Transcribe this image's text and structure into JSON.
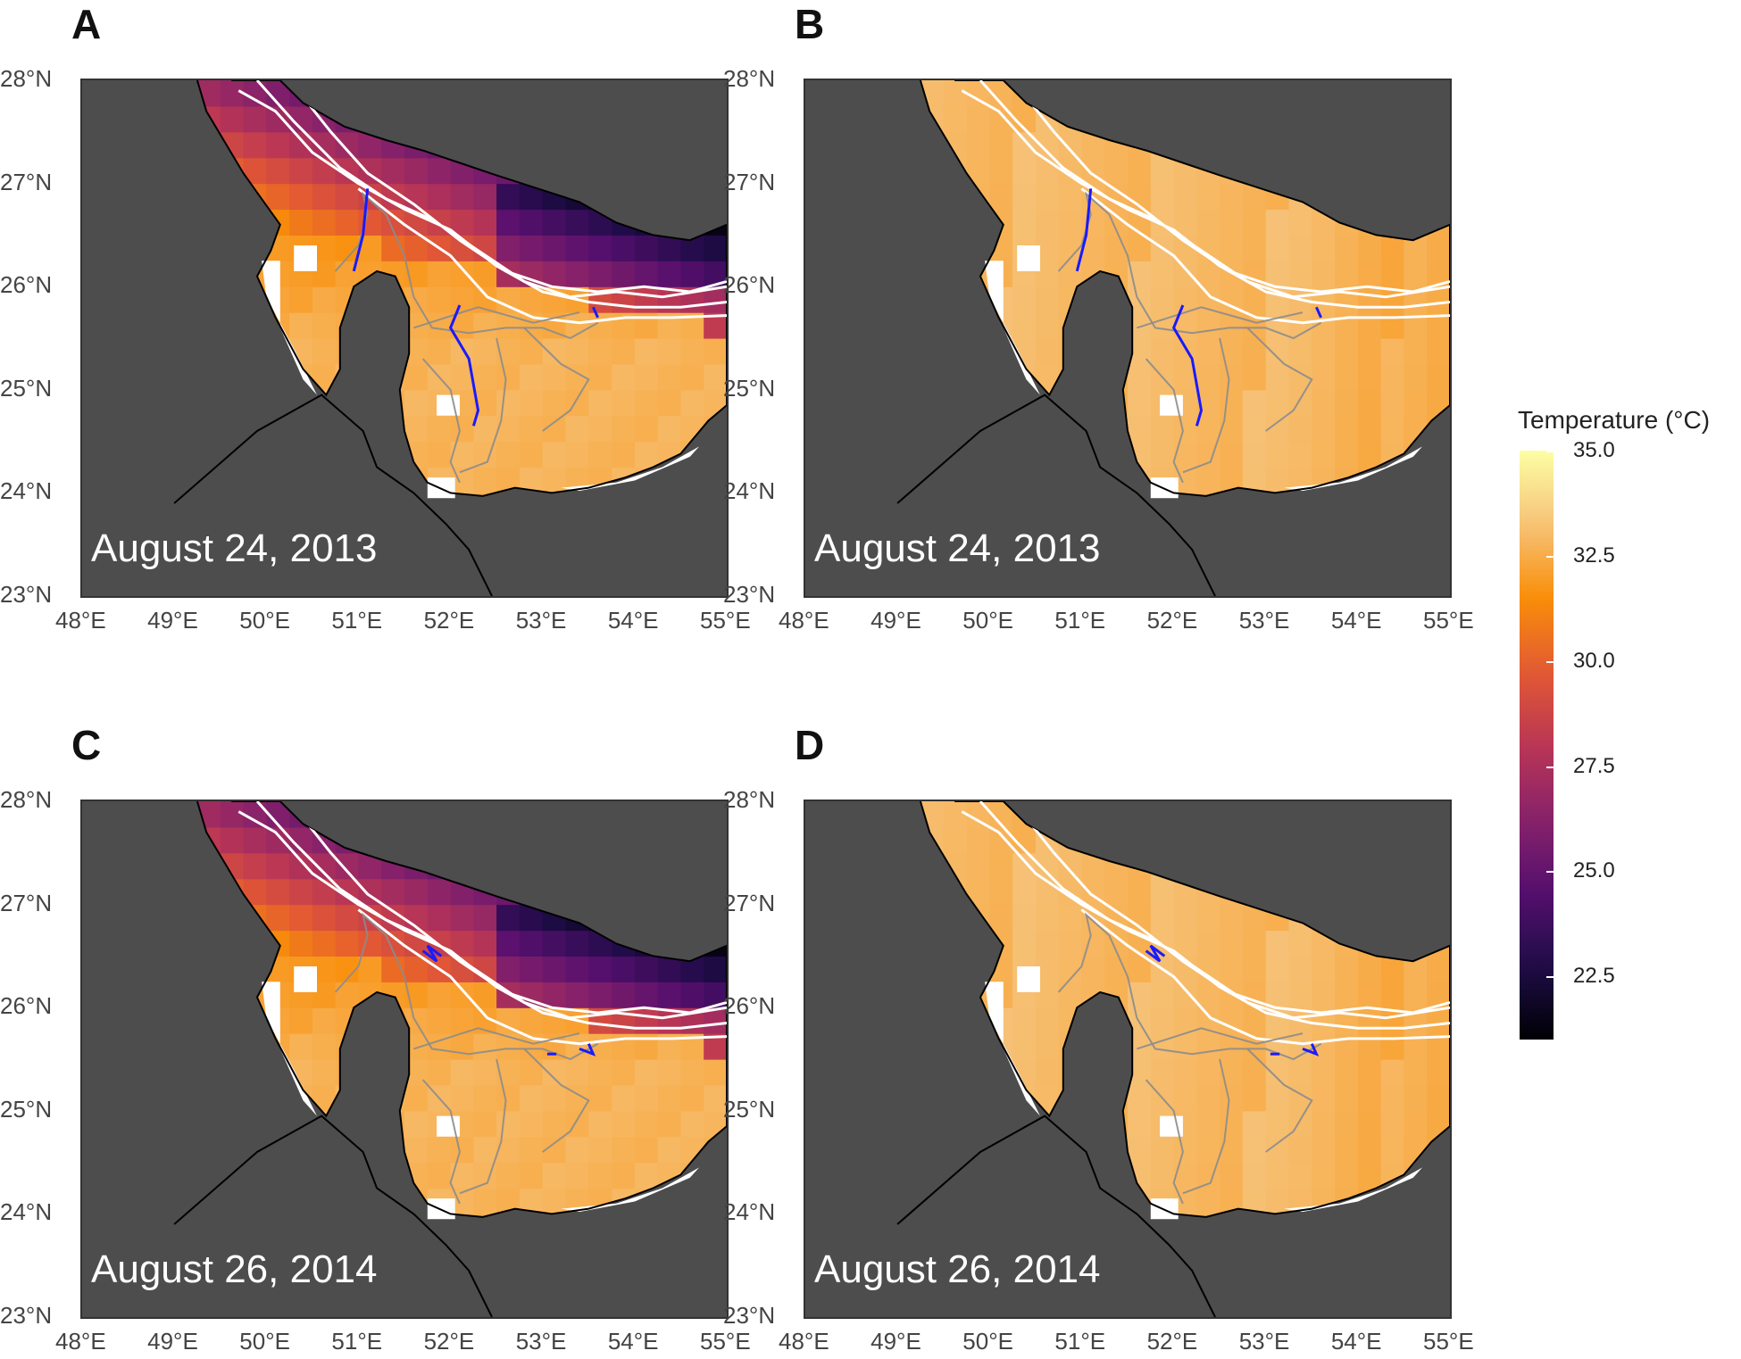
{
  "figure": {
    "legend": {
      "title": "Temperature (°C)",
      "ticks": [
        "35.0",
        "32.5",
        "30.0",
        "27.5",
        "25.0",
        "22.5"
      ],
      "colors": [
        "#000004",
        "#1f0c48",
        "#550f6d",
        "#88226a",
        "#ba3655",
        "#e35933",
        "#f98e09",
        "#f6c37a",
        "#fcffa4"
      ],
      "range": [
        21.0,
        35.0
      ]
    },
    "lat_labels": [
      "28°N",
      "27°N",
      "26°N",
      "25°N",
      "24°N",
      "23°N"
    ],
    "lon_labels": [
      "48°E",
      "49°E",
      "50°E",
      "51°E",
      "52°E",
      "53°E",
      "54°E",
      "55°E"
    ],
    "colors": {
      "land": "#4d4d4d",
      "no_data": "#ffffff",
      "contours": "#ffffff",
      "tracks_highlight": "#1a1aff",
      "tracks_other": "#8c8c8c"
    },
    "panels": [
      {
        "letter": "A",
        "date": "August 24, 2013",
        "scheme": "cool_north"
      },
      {
        "letter": "B",
        "date": "August 24, 2013",
        "scheme": "warm_uniform"
      },
      {
        "letter": "C",
        "date": "August 26, 2014",
        "scheme": "cool_north"
      },
      {
        "letter": "D",
        "date": "August 26, 2014",
        "scheme": "warm_uniform"
      }
    ]
  }
}
